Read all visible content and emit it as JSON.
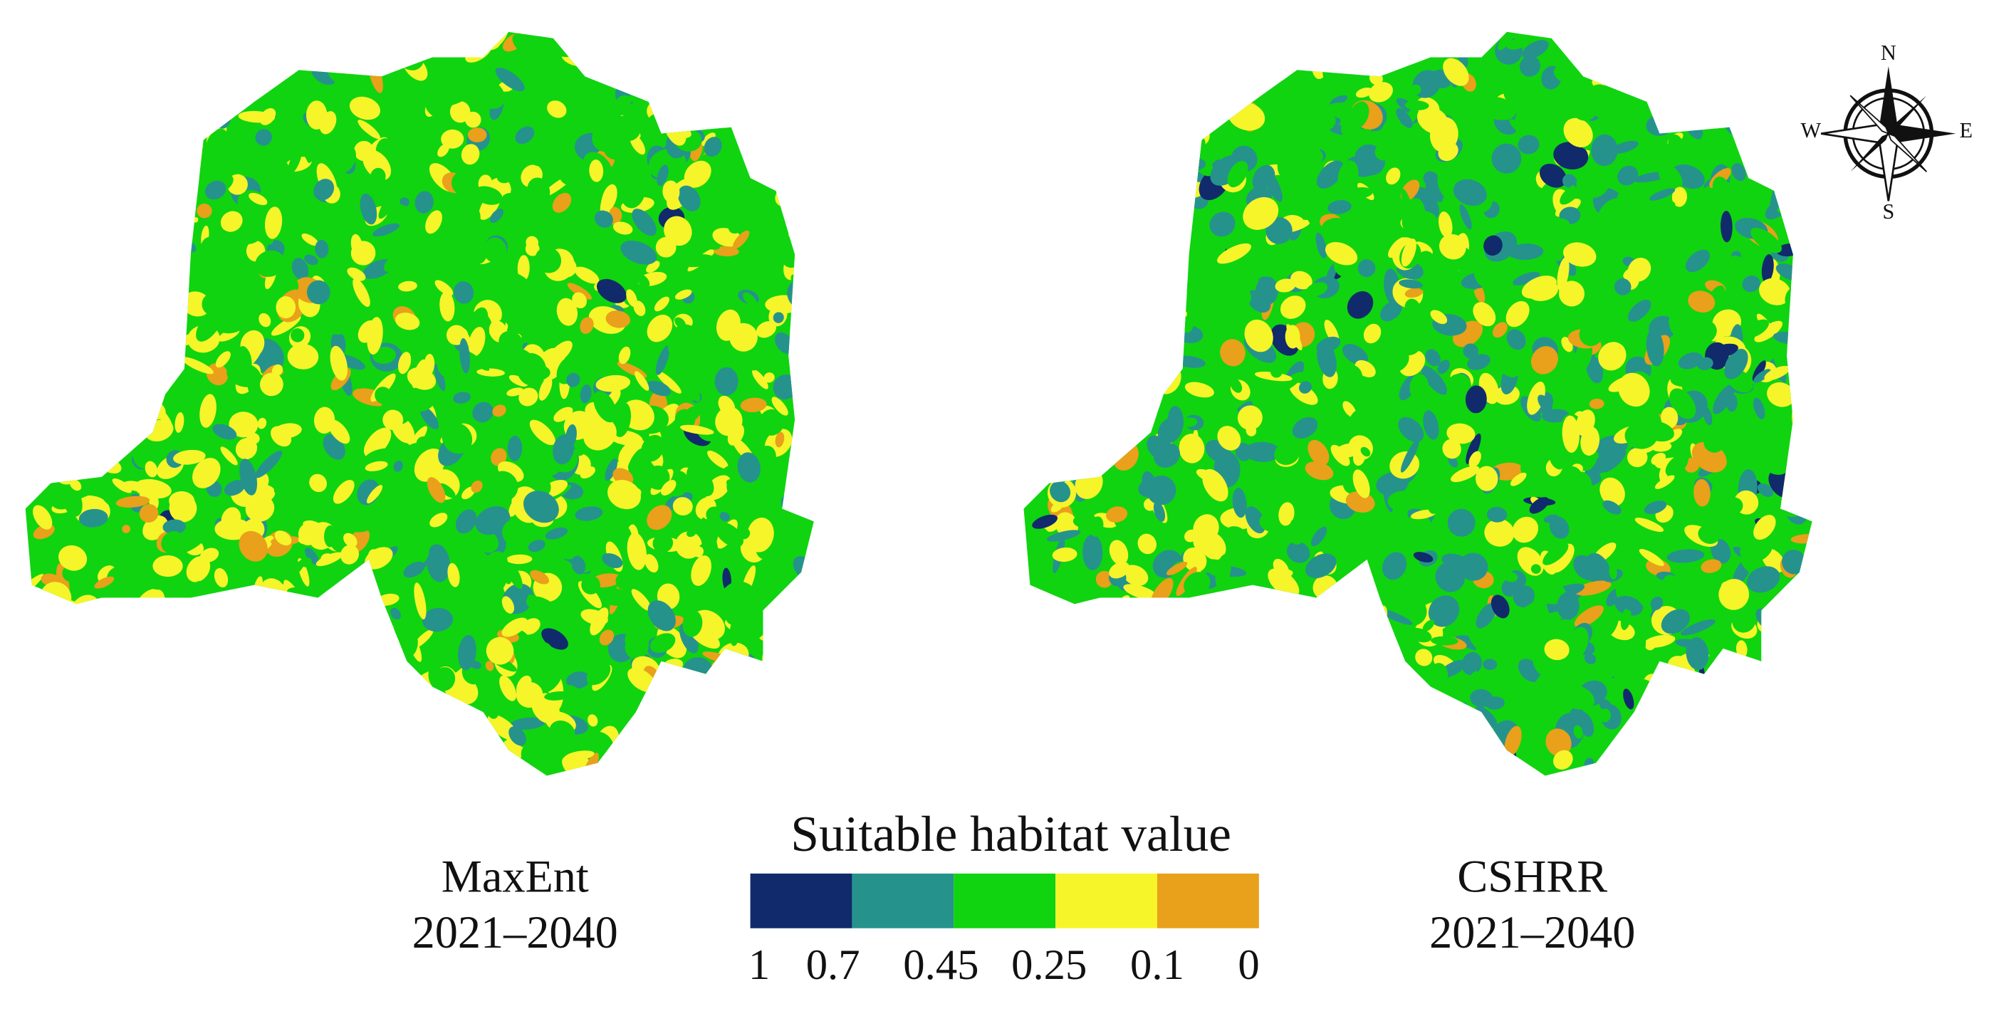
{
  "maps": [
    {
      "label": "MaxEnt",
      "period": "2021–2040"
    },
    {
      "label": "CSHRR",
      "period": "2021–2040"
    }
  ],
  "legend": {
    "title": "Suitable habitat value",
    "colors": [
      "#102a6b",
      "#25938c",
      "#10d410",
      "#f5f52a",
      "#e9a01a"
    ],
    "labels": [
      1,
      0.7,
      0.45,
      0.25,
      0.1,
      0
    ]
  },
  "compass": {
    "n": "N",
    "e": "E",
    "s": "S",
    "w": "W"
  }
}
